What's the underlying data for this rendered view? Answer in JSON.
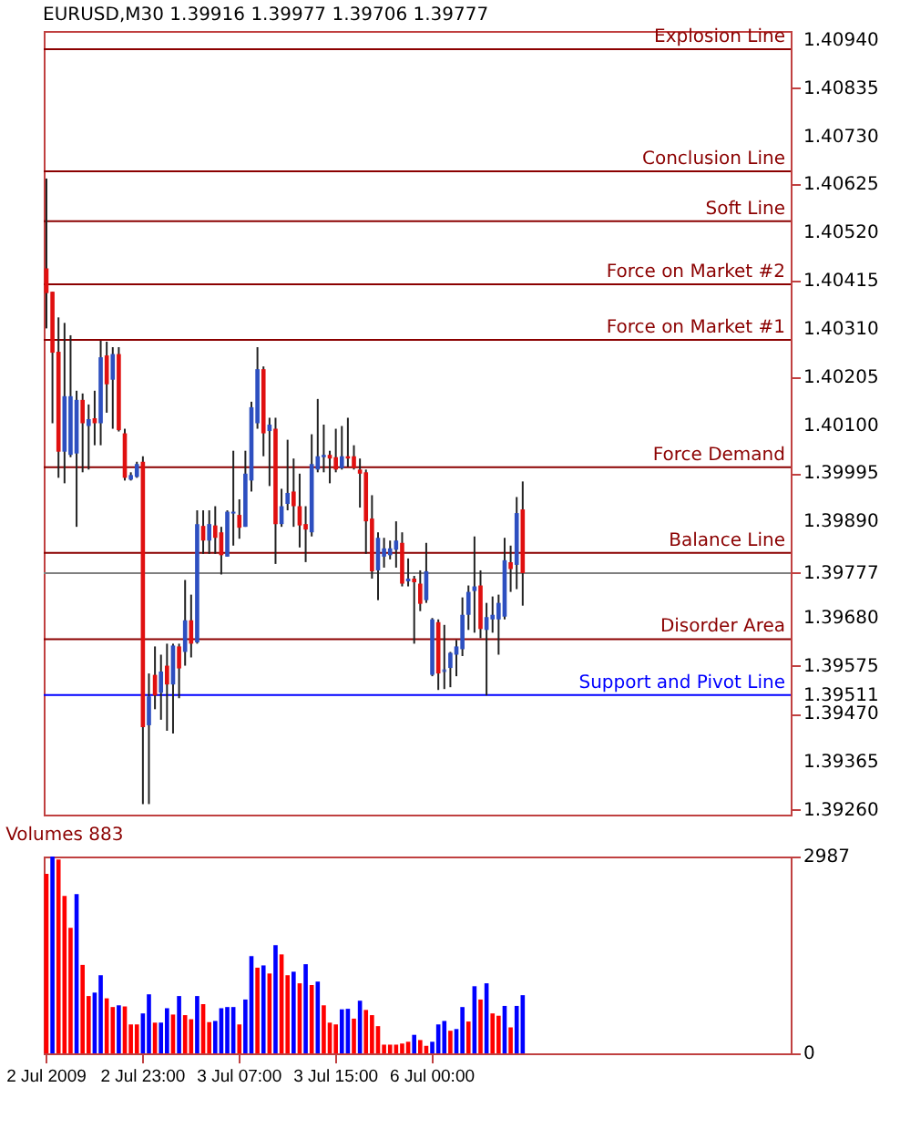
{
  "chart_data": [
    {
      "type": "candlestick",
      "title": "EURUSD,M30 1.39916 1.39977 1.39706 1.39777",
      "categories": [
        "2 Jul 2009",
        null,
        null,
        null,
        null,
        null,
        null,
        null,
        null,
        null,
        null,
        null,
        null,
        null,
        null,
        null,
        "2 Jul 23:00",
        null,
        null,
        null,
        null,
        null,
        null,
        null,
        null,
        null,
        null,
        null,
        null,
        null,
        null,
        null,
        "3 Jul 07:00",
        null,
        null,
        null,
        null,
        null,
        null,
        null,
        null,
        null,
        null,
        null,
        null,
        null,
        null,
        null,
        "3 Jul 15:00",
        null,
        null,
        null,
        null,
        null,
        null,
        null,
        null,
        null,
        null,
        null,
        null,
        null,
        null,
        null,
        "6 Jul 00:00",
        null,
        null,
        null,
        null,
        null,
        null,
        null,
        null,
        null,
        null,
        null,
        null,
        null,
        null,
        null,
        null,
        null,
        null,
        null,
        null,
        null,
        null,
        null,
        null,
        null,
        null,
        null,
        null,
        null,
        null,
        null,
        null,
        null,
        null,
        null,
        null,
        null,
        null,
        null,
        null,
        null,
        null,
        null,
        null,
        null,
        null,
        null,
        null,
        null,
        null,
        null,
        null,
        null,
        null,
        null,
        null,
        null,
        null,
        null
      ],
      "ohlc": [
        [
          1.40442,
          1.40638,
          1.40311,
          1.40388
        ],
        [
          1.40391,
          1.40391,
          1.40104,
          1.40258
        ],
        [
          1.4026,
          1.40335,
          1.39985,
          1.40042
        ],
        [
          1.40042,
          1.40323,
          1.39973,
          1.40163
        ],
        [
          1.40035,
          1.40296,
          1.4003,
          1.40163
        ],
        [
          1.40038,
          1.40175,
          1.39878,
          1.40155
        ],
        [
          1.40155,
          1.40169,
          1.39997,
          1.40104
        ],
        [
          1.40098,
          1.40145,
          1.40003,
          1.40113
        ],
        [
          1.40115,
          1.40175,
          1.40056,
          1.40104
        ],
        [
          1.40104,
          1.40284,
          1.40056,
          1.40248
        ],
        [
          1.40252,
          1.40282,
          1.40127,
          1.40189
        ],
        [
          1.40199,
          1.4027,
          1.40092,
          1.40255
        ],
        [
          1.40255,
          1.4027,
          1.40086,
          1.40089
        ],
        [
          1.40082,
          1.40092,
          1.39979,
          1.39985
        ],
        [
          1.39981,
          1.39997,
          1.39979,
          1.39991
        ],
        [
          1.39987,
          1.4002,
          1.39985,
          1.40015
        ],
        [
          1.4002,
          1.40032,
          1.39273,
          1.39441
        ],
        [
          1.39445,
          1.39558,
          1.39273,
          1.39508
        ],
        [
          1.39555,
          1.39617,
          1.3948,
          1.3951
        ],
        [
          1.39516,
          1.39599,
          1.39457,
          1.39562
        ],
        [
          1.39575,
          1.39623,
          1.39433,
          1.39534
        ],
        [
          1.39534,
          1.39623,
          1.39427,
          1.39619
        ],
        [
          1.39617,
          1.39623,
          1.39504,
          1.39569
        ],
        [
          1.39605,
          1.39762,
          1.39575,
          1.39674
        ],
        [
          1.39674,
          1.3973,
          1.39593,
          1.39623
        ],
        [
          1.39626,
          1.39914,
          1.39623,
          1.39884
        ],
        [
          1.3988,
          1.39914,
          1.39819,
          1.39848
        ],
        [
          1.39848,
          1.39914,
          1.39819,
          1.39884
        ],
        [
          1.39881,
          1.39923,
          1.39819,
          1.39854
        ],
        [
          1.39866,
          1.39878,
          1.39774,
          1.39816
        ],
        [
          1.39813,
          1.39914,
          1.39813,
          1.39911
        ],
        [
          1.39907,
          1.40044,
          1.39837,
          1.39911
        ],
        [
          1.39904,
          1.39938,
          1.39852,
          1.39876
        ],
        [
          1.39878,
          1.40044,
          1.39878,
          1.39994
        ],
        [
          1.39979,
          1.40151,
          1.39955,
          1.40139
        ],
        [
          1.40104,
          1.4027,
          1.40092,
          1.40222
        ],
        [
          1.40222,
          1.40228,
          1.40032,
          1.40082
        ],
        [
          1.40087,
          1.40116,
          1.39967,
          1.40101
        ],
        [
          1.40092,
          1.40116,
          1.39797,
          1.39884
        ],
        [
          1.39884,
          1.39961,
          1.39878,
          1.39923
        ],
        [
          1.39928,
          1.40068,
          1.39914,
          1.39952
        ],
        [
          1.39955,
          1.40027,
          1.39878,
          1.39923
        ],
        [
          1.39923,
          1.39994,
          1.39833,
          1.39881
        ],
        [
          1.39884,
          1.39923,
          1.39801,
          1.39872
        ],
        [
          1.39866,
          1.4008,
          1.39857,
          1.40015
        ],
        [
          1.40003,
          1.40157,
          1.39997,
          1.40032
        ],
        [
          1.4003,
          1.40101,
          1.39997,
          1.40035
        ],
        [
          1.40035,
          1.40044,
          1.39973,
          1.40027
        ],
        [
          1.4003,
          1.40092,
          1.39997,
          1.40003
        ],
        [
          1.40006,
          1.40098,
          1.40003,
          1.40032
        ],
        [
          1.40032,
          1.40116,
          1.40009,
          1.40027
        ],
        [
          1.40032,
          1.40056,
          1.40003,
          1.40006
        ],
        [
          1.40003,
          1.40027,
          1.3992,
          1.39994
        ],
        [
          1.39997,
          1.40003,
          1.39819,
          1.3989
        ],
        [
          1.39896,
          1.39947,
          1.39765,
          1.39781
        ],
        [
          1.39783,
          1.39866,
          1.39718,
          1.39854
        ],
        [
          1.39813,
          1.39854,
          1.39789,
          1.39831
        ],
        [
          1.39816,
          1.39848,
          1.39807,
          1.39831
        ],
        [
          1.39828,
          1.3989,
          1.39789,
          1.39848
        ],
        [
          1.39843,
          1.39866,
          1.39748,
          1.39754
        ],
        [
          1.39759,
          1.39809,
          1.39748,
          1.39765
        ],
        [
          1.39765,
          1.39771,
          1.39623,
          1.39757
        ],
        [
          1.39754,
          1.39783,
          1.39694,
          1.3971
        ],
        [
          1.39718,
          1.39843,
          1.39712,
          1.39781
        ],
        [
          1.39555,
          1.39679,
          1.39552,
          1.39676
        ],
        [
          1.3967,
          1.39676,
          1.39522,
          1.39558
        ],
        [
          1.39564,
          1.39664,
          1.39524,
          1.39564
        ],
        [
          1.3957,
          1.39605,
          1.39528,
          1.39603
        ],
        [
          1.39599,
          1.39631,
          1.39552,
          1.39617
        ],
        [
          1.39611,
          1.39724,
          1.39596,
          1.39686
        ],
        [
          1.39686,
          1.3975,
          1.39653,
          1.39736
        ],
        [
          1.39738,
          1.39857,
          1.39647,
          1.39748
        ],
        [
          1.3975,
          1.39783,
          1.39635,
          1.39655
        ],
        [
          1.39653,
          1.39712,
          1.3951,
          1.39681
        ],
        [
          1.39676,
          1.39726,
          1.39647,
          1.39686
        ],
        [
          1.39676,
          1.3973,
          1.39599,
          1.39712
        ],
        [
          1.39682,
          1.39854,
          1.39676,
          1.39805
        ],
        [
          1.39801,
          1.39837,
          1.39736,
          1.39786
        ],
        [
          1.39795,
          1.39943,
          1.39742,
          1.39908
        ],
        [
          1.39916,
          1.39977,
          1.39706,
          1.39777
        ],
        null,
        null,
        null,
        null,
        null,
        null,
        null,
        null,
        null,
        null,
        null,
        null,
        null,
        null,
        null,
        null,
        null,
        null,
        null,
        null,
        null,
        null,
        null,
        null,
        null,
        null,
        null,
        null,
        null,
        null,
        null,
        null,
        null,
        null,
        null,
        null,
        null,
        null,
        null,
        null,
        null,
        null,
        null,
        null
      ],
      "ylim": [
        1.3925,
        1.4096
      ],
      "yticks": [
        {
          "value": 1.4094,
          "label": "1.40940"
        },
        1.40835,
        {
          "value": 1.4073,
          "label": "1.40730"
        },
        1.40625,
        {
          "value": 1.4052,
          "label": "1.40520"
        },
        1.40415,
        {
          "value": 1.4031,
          "label": "1.40310"
        },
        1.40205,
        {
          "value": 1.401,
          "label": "1.40100"
        },
        1.39995,
        {
          "value": 1.3989,
          "label": "1.39890"
        },
        1.39777,
        {
          "value": 1.3968,
          "label": "1.39680"
        },
        1.39575,
        1.39511,
        {
          "value": 1.3947,
          "label": "1.39470"
        },
        1.39365,
        {
          "value": 1.3926,
          "label": "1.39260"
        }
      ],
      "tick_labels": "y",
      "ref_lines": [
        {
          "axis": "y",
          "value": 1.4092,
          "label": "Explosion Line",
          "color": "#8b0000"
        },
        {
          "axis": "y",
          "value": 1.40654,
          "label": "Conclusion Line",
          "color": "#8b0000"
        },
        {
          "axis": "y",
          "value": 1.40545,
          "label": "Soft Line",
          "color": "#8b0000"
        },
        {
          "axis": "y",
          "value": 1.40407,
          "label": "Force on Market #2",
          "color": "#8b0000"
        },
        {
          "axis": "y",
          "value": 1.40286,
          "label": "Force on Market #1",
          "color": "#8b0000"
        },
        {
          "axis": "y",
          "value": 1.40008,
          "label": "Force Demand",
          "color": "#8b0000"
        },
        {
          "axis": "y",
          "value": 1.39821,
          "label": "Balance Line",
          "color": "#8b0000"
        },
        {
          "axis": "y",
          "value": 1.39777,
          "color": "#808080"
        },
        {
          "axis": "y",
          "value": 1.39633,
          "label": "Disorder Area",
          "color": "#8b0000"
        },
        {
          "axis": "y",
          "value": 1.39511,
          "label": "Support and Pivot Line",
          "color": "#0000ff"
        }
      ]
    },
    {
      "type": "bar",
      "title": "Volumes 883",
      "categories": [
        "2 Jul 2009",
        null,
        null,
        null,
        null,
        null,
        null,
        null,
        null,
        null,
        null,
        null,
        null,
        null,
        null,
        null,
        "2 Jul 23:00",
        null,
        null,
        null,
        null,
        null,
        null,
        null,
        null,
        null,
        null,
        null,
        null,
        null,
        null,
        null,
        "3 Jul 07:00",
        null,
        null,
        null,
        null,
        null,
        null,
        null,
        null,
        null,
        null,
        null,
        null,
        null,
        null,
        null,
        "3 Jul 15:00",
        null,
        null,
        null,
        null,
        null,
        null,
        null,
        null,
        null,
        null,
        null,
        null,
        null,
        null,
        null,
        "6 Jul 00:00",
        null,
        null,
        null,
        null,
        null,
        null,
        null,
        null,
        null,
        null,
        null,
        null,
        null,
        null,
        null,
        null,
        null,
        null,
        null,
        null,
        null,
        null,
        null,
        null,
        null,
        null,
        null,
        null,
        null,
        null,
        null,
        null,
        null,
        null,
        null,
        null,
        null,
        null,
        null,
        null,
        null,
        null,
        null,
        null,
        null,
        null,
        null,
        null,
        null,
        null,
        null,
        null,
        null,
        null,
        null,
        null,
        null,
        null,
        null
      ],
      "values": [
        2723,
        2987,
        2943,
        2390,
        1906,
        2416,
        1343,
        870,
        922,
        1186,
        835,
        703,
        729,
        712,
        439,
        439,
        606,
        896,
        466,
        466,
        685,
        589,
        870,
        580,
        518,
        870,
        747,
        474,
        492,
        685,
        703,
        703,
        439,
        817,
        1476,
        1300,
        1335,
        1212,
        1643,
        1502,
        1186,
        1239,
        1063,
        1353,
        1037,
        1089,
        729,
        466,
        439,
        668,
        676,
        527,
        799,
        659,
        580,
        413,
        132,
        132,
        132,
        149,
        176,
        281,
        202,
        114,
        176,
        439,
        492,
        343,
        369,
        703,
        483,
        1019,
        817,
        1063,
        606,
        571,
        720,
        395,
        720,
        883,
        null,
        null,
        null,
        null,
        null,
        null,
        null,
        null,
        null,
        null,
        null,
        null,
        null,
        null,
        null,
        null,
        null,
        null,
        null,
        null,
        null,
        null,
        null,
        null,
        null,
        null,
        null,
        null,
        null,
        null,
        null,
        null,
        null,
        null,
        null,
        null,
        null,
        null,
        null,
        null,
        null,
        null,
        null,
        null
      ],
      "colors": [
        "#ff0000",
        "#0000ff",
        "#ff0000",
        "#ff0000",
        "#ff0000",
        "#0000ff",
        "#ff0000",
        "#ff0000",
        "#0000ff",
        "#0000ff",
        "#ff0000",
        "#ff0000",
        "#0000ff",
        "#ff0000",
        "#ff0000",
        "#ff0000",
        "#0000ff",
        "#0000ff",
        "#ff0000",
        "#0000ff",
        "#0000ff",
        "#ff0000",
        "#0000ff",
        "#ff0000",
        "#ff0000",
        "#0000ff",
        "#ff0000",
        "#ff0000",
        "#0000ff",
        "#0000ff",
        "#0000ff",
        "#0000ff",
        "#ff0000",
        "#0000ff",
        "#0000ff",
        "#ff0000",
        "#0000ff",
        "#ff0000",
        "#0000ff",
        "#ff0000",
        "#ff0000",
        "#0000ff",
        "#ff0000",
        "#0000ff",
        "#ff0000",
        "#0000ff",
        "#ff0000",
        "#ff0000",
        "#ff0000",
        "#0000ff",
        "#0000ff",
        "#ff0000",
        "#0000ff",
        "#ff0000",
        "#ff0000",
        "#ff0000",
        "#ff0000",
        "#ff0000",
        "#ff0000",
        "#ff0000",
        "#ff0000",
        "#0000ff",
        "#ff0000",
        "#ff0000",
        "#0000ff",
        "#0000ff",
        "#0000ff",
        "#ff0000",
        "#0000ff",
        "#0000ff",
        "#ff0000",
        "#0000ff",
        "#ff0000",
        "#0000ff",
        "#ff0000",
        "#ff0000",
        "#0000ff",
        "#ff0000",
        "#0000ff",
        "#0000ff",
        null,
        null,
        null,
        null,
        null,
        null,
        null,
        null,
        null,
        null,
        null,
        null,
        null,
        null,
        null,
        null,
        null,
        null,
        null,
        null,
        null,
        null,
        null,
        null,
        null,
        null,
        null,
        null,
        null,
        null,
        null,
        null,
        null,
        null,
        null,
        null,
        null,
        null,
        null,
        null,
        null,
        null,
        null,
        null
      ],
      "ylim": [
        0,
        2987
      ],
      "yticks": [
        0,
        2987
      ]
    }
  ]
}
